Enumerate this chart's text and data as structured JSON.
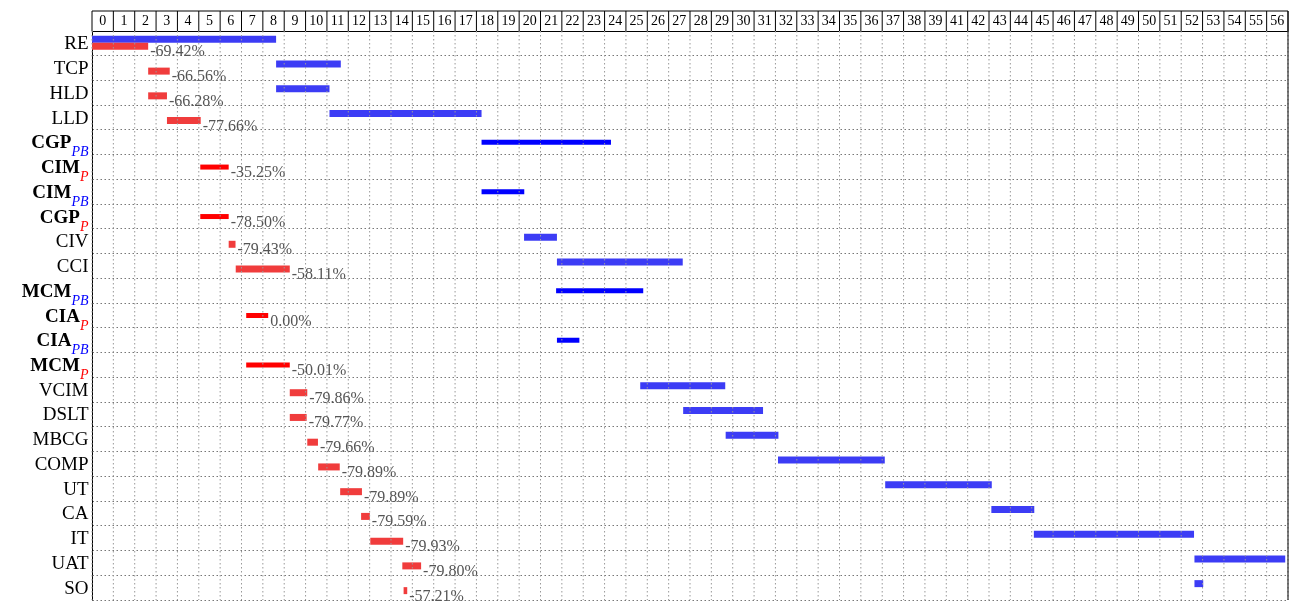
{
  "chart_data": {
    "type": "bar",
    "orientation": "horizontal",
    "categories": [
      "RE",
      "TCP",
      "HLD",
      "LLD",
      "CGP$_{PB}$",
      "CIM$_{P}$",
      "CIM$_{PB}$",
      "CGP$_{P}$",
      "CIV",
      "CCI",
      "MCM$_{PB}$",
      "CIA$_{P}$",
      "CIA$_{PB}$",
      "MCM$_{P}$",
      "VCIM",
      "DSLT",
      "MBCG",
      "COMP",
      "UT",
      "CA",
      "IT",
      "UAT",
      "SO"
    ],
    "xlim": [
      0,
      56
    ],
    "xticks": [
      {
        "value": 0.5,
        "label": "0"
      },
      {
        "value": 1.5,
        "label": "1"
      },
      {
        "value": 2.5,
        "label": "2"
      },
      {
        "value": 3.5,
        "label": "3"
      },
      {
        "value": 4.5,
        "label": "4"
      },
      {
        "value": 5.5,
        "label": "5"
      },
      {
        "value": 6.5,
        "label": "6"
      },
      {
        "value": 7.5,
        "label": "7"
      },
      {
        "value": 8.5,
        "label": "8"
      },
      {
        "value": 9.5,
        "label": "9"
      },
      {
        "value": 10.5,
        "label": "10"
      },
      {
        "value": 11.5,
        "label": "11"
      },
      {
        "value": 12.5,
        "label": "12"
      },
      {
        "value": 13.5,
        "label": "13"
      },
      {
        "value": 14.5,
        "label": "14"
      },
      {
        "value": 15.5,
        "label": "15"
      },
      {
        "value": 16.5,
        "label": "16"
      },
      {
        "value": 17.5,
        "label": "17"
      },
      {
        "value": 18.5,
        "label": "18"
      },
      {
        "value": 19.5,
        "label": "19"
      },
      {
        "value": 20.5,
        "label": "20"
      },
      {
        "value": 21.5,
        "label": "21"
      },
      {
        "value": 22.5,
        "label": "22"
      },
      {
        "value": 23.5,
        "label": "23"
      },
      {
        "value": 24.5,
        "label": "24"
      },
      {
        "value": 25.5,
        "label": "25"
      },
      {
        "value": 26.5,
        "label": "26"
      },
      {
        "value": 27.5,
        "label": "27"
      },
      {
        "value": 28.5,
        "label": "28"
      },
      {
        "value": 29.5,
        "label": "29"
      },
      {
        "value": 30.5,
        "label": "30"
      },
      {
        "value": 31.5,
        "label": "31"
      },
      {
        "value": 32.5,
        "label": "32"
      },
      {
        "value": 33.5,
        "label": "33"
      },
      {
        "value": 34.5,
        "label": "34"
      },
      {
        "value": 35.5,
        "label": "35"
      },
      {
        "value": 36.5,
        "label": "36"
      },
      {
        "value": 37.5,
        "label": "37"
      },
      {
        "value": 38.5,
        "label": "38"
      },
      {
        "value": 39.5,
        "label": "39"
      },
      {
        "value": 40.5,
        "label": "41"
      },
      {
        "value": 41.5,
        "label": "42"
      },
      {
        "value": 42.5,
        "label": "43"
      },
      {
        "value": 43.5,
        "label": "44"
      },
      {
        "value": 44.5,
        "label": "45"
      },
      {
        "value": 45.5,
        "label": "46"
      },
      {
        "value": 46.5,
        "label": "47"
      },
      {
        "value": 47.5,
        "label": "48"
      },
      {
        "value": 48.5,
        "label": "49"
      },
      {
        "value": 49.5,
        "label": "50"
      },
      {
        "value": 50.5,
        "label": "51"
      },
      {
        "value": 51.5,
        "label": "52"
      },
      {
        "value": 52.5,
        "label": "53"
      },
      {
        "value": 53.5,
        "label": "54"
      },
      {
        "value": 54.5,
        "label": "55"
      },
      {
        "value": 55.5,
        "label": "56"
      }
    ],
    "grid": true,
    "series": [
      {
        "color": "#3c3cf5",
        "base": [
          0,
          8.62,
          8.62,
          11.12,
          null,
          null,
          null,
          null,
          20.23,
          21.77,
          null,
          null,
          null,
          null,
          25.67,
          27.68,
          29.67,
          32.12,
          37.14,
          42.11,
          44.1,
          51.62,
          51.62
        ],
        "values": [
          8.62,
          3.03,
          2.5,
          7.12,
          null,
          null,
          null,
          null,
          1.54,
          5.89,
          null,
          null,
          null,
          null,
          3.98,
          3.74,
          2.47,
          5.0,
          4.99,
          2.01,
          7.5,
          4.25,
          0.41
        ]
      },
      {
        "color": "#f03c3c",
        "base": [
          0,
          2.63,
          2.63,
          3.51,
          null,
          null,
          null,
          null,
          6.4,
          6.73,
          null,
          null,
          null,
          null,
          9.26,
          9.26,
          10.08,
          10.59,
          11.62,
          12.6,
          13.03,
          14.53,
          14.59
        ],
        "values": [
          2.63,
          1.01,
          0.88,
          1.58,
          null,
          null,
          null,
          null,
          0.32,
          2.53,
          null,
          null,
          null,
          null,
          0.82,
          0.79,
          0.5,
          1.01,
          1.02,
          0.41,
          1.54,
          0.88,
          0.17
        ]
      },
      {
        "color": "#0000ff",
        "base": [
          null,
          null,
          null,
          null,
          18.24,
          null,
          18.24,
          null,
          null,
          null,
          21.73,
          null,
          21.77,
          null,
          null,
          null,
          null,
          null,
          null,
          null,
          null,
          null,
          null
        ],
        "values": [
          null,
          null,
          null,
          null,
          6.06,
          null,
          2.0,
          null,
          null,
          null,
          4.08,
          null,
          1.05,
          null,
          null,
          null,
          null,
          null,
          null,
          null,
          null,
          null,
          null
        ]
      },
      {
        "color": "#ff0000",
        "base": [
          null,
          null,
          null,
          null,
          null,
          5.07,
          null,
          5.07,
          null,
          null,
          null,
          7.22,
          null,
          7.22,
          null,
          null,
          null,
          null,
          null,
          null,
          null,
          null,
          null
        ],
        "values": [
          null,
          null,
          null,
          null,
          null,
          1.33,
          null,
          1.33,
          null,
          null,
          null,
          1.03,
          null,
          2.04,
          null,
          null,
          null,
          null,
          null,
          null,
          null,
          null,
          null
        ]
      }
    ],
    "annotations": [
      {
        "text": "-69.42%",
        "x": 2.63,
        "y": "RE"
      },
      {
        "text": "-66.56%",
        "x": 3.64,
        "y": "TCP"
      },
      {
        "text": "-66.28%",
        "x": 3.51,
        "y": "HLD"
      },
      {
        "text": "-77.66%",
        "x": 5.09,
        "y": "LLD"
      },
      {
        "text": "-35.25%",
        "x": 6.4,
        "y": "CIM$_{P}$"
      },
      {
        "text": "-78.50%",
        "x": 6.4,
        "y": "CGP$_{P}$"
      },
      {
        "text": "-79.43%",
        "x": 6.72,
        "y": "CIV"
      },
      {
        "text": "-58.11%",
        "x": 9.26,
        "y": "CCI"
      },
      {
        "text": "0.00%",
        "x": 8.25,
        "y": "CIA$_{P}$"
      },
      {
        "text": "-50.01%",
        "x": 9.26,
        "y": "MCM$_{P}$"
      },
      {
        "text": "-79.86%",
        "x": 10.08,
        "y": "VCIM"
      },
      {
        "text": "-79.77%",
        "x": 10.05,
        "y": "DSLT"
      },
      {
        "text": "-79.66%",
        "x": 10.58,
        "y": "MBCG"
      },
      {
        "text": "-79.89%",
        "x": 11.6,
        "y": "COMP"
      },
      {
        "text": "-79.89%",
        "x": 12.64,
        "y": "UT"
      },
      {
        "text": "-79.59%",
        "x": 13.01,
        "y": "CA"
      },
      {
        "text": "-79.93%",
        "x": 14.57,
        "y": "IT"
      },
      {
        "text": "-79.80%",
        "x": 15.41,
        "y": "UAT"
      },
      {
        "text": "-57.21%",
        "x": 14.76,
        "y": "SO"
      }
    ]
  }
}
